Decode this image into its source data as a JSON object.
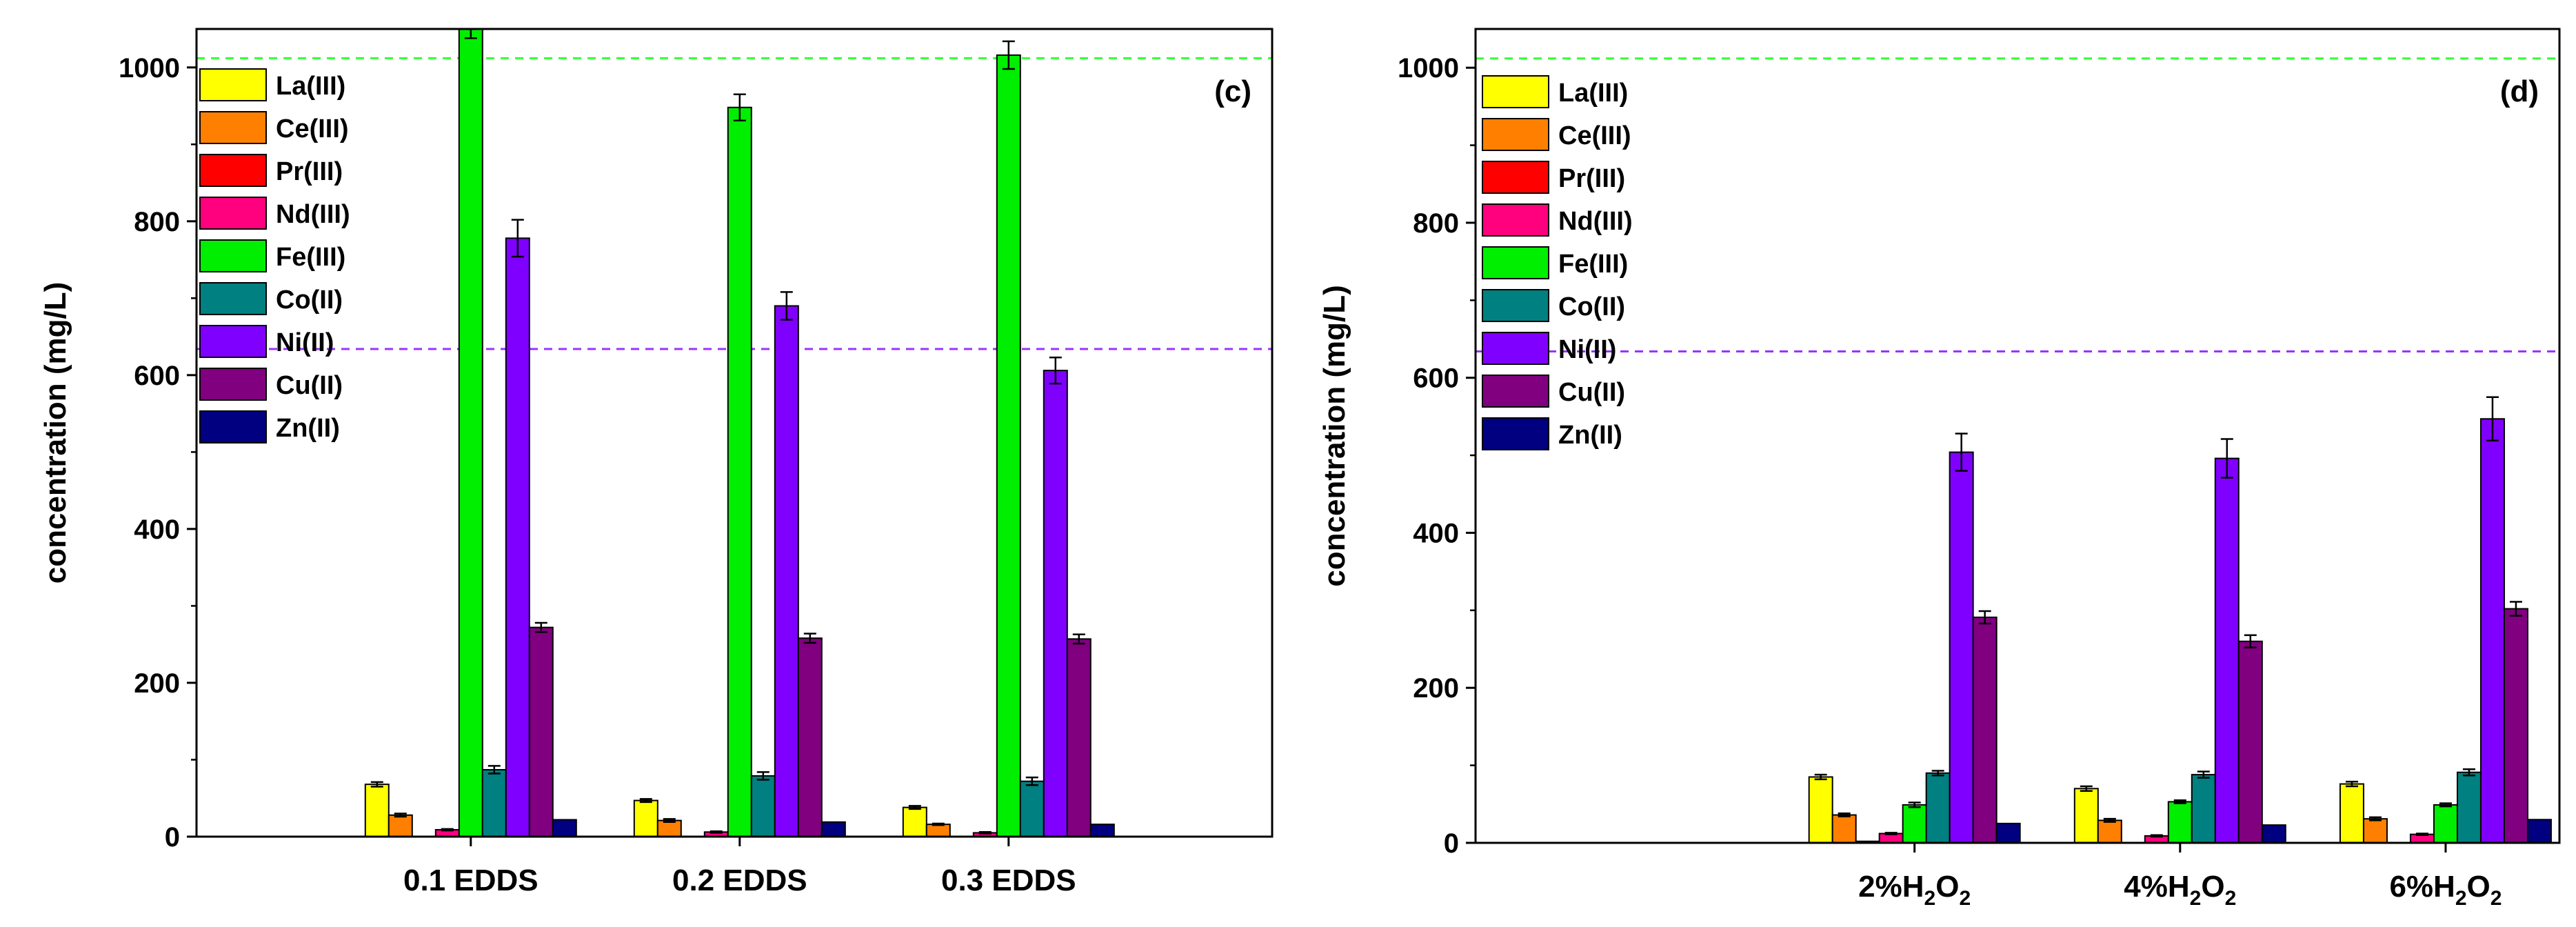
{
  "figure": {
    "background": "#ffffff"
  },
  "chart_data": [
    {
      "type": "bar",
      "panel_label": "(c)",
      "ylabel": "concentration (mg/L)",
      "ylim": [
        0,
        1050
      ],
      "yticks": [
        0,
        200,
        400,
        600,
        800,
        1000
      ],
      "categories": [
        "0.1 EDDS",
        "0.2 EDDS",
        "0.3 EDDS"
      ],
      "category_labels": [
        {
          "pre": "0.1 EDDS",
          "sub": "",
          "post": ""
        },
        {
          "pre": "0.2 EDDS",
          "sub": "",
          "post": ""
        },
        {
          "pre": "0.3 EDDS",
          "sub": "",
          "post": ""
        }
      ],
      "legend_position": "top-left",
      "reference_lines": [
        {
          "value": 1012,
          "color": "#33ff33"
        },
        {
          "value": 634,
          "color": "#9933ff"
        }
      ],
      "series": [
        {
          "name": "La(III)",
          "color": "#ffff00",
          "values": [
            68,
            47,
            38
          ],
          "errors": [
            3,
            2,
            2
          ]
        },
        {
          "name": "Ce(III)",
          "color": "#ff8000",
          "values": [
            28,
            21,
            16
          ],
          "errors": [
            2,
            2,
            1
          ]
        },
        {
          "name": "Pr(III)",
          "color": "#ff0000",
          "values": [
            0,
            0,
            0
          ],
          "errors": [
            0,
            0,
            0
          ]
        },
        {
          "name": "Nd(III)",
          "color": "#ff007f",
          "values": [
            9,
            6,
            5
          ],
          "errors": [
            1,
            1,
            1
          ]
        },
        {
          "name": "Fe(III)",
          "color": "#00ee00",
          "values": [
            1050,
            948,
            1016
          ],
          "errors": [
            12,
            17,
            18
          ]
        },
        {
          "name": "Co(II)",
          "color": "#008080",
          "values": [
            87,
            79,
            72
          ],
          "errors": [
            5,
            5,
            5
          ]
        },
        {
          "name": "Ni(II)",
          "color": "#8000ff",
          "values": [
            778,
            690,
            606
          ],
          "errors": [
            24,
            18,
            17
          ]
        },
        {
          "name": "Cu(II)",
          "color": "#800080",
          "values": [
            272,
            258,
            257
          ],
          "errors": [
            6,
            6,
            6
          ]
        },
        {
          "name": "Zn(II)",
          "color": "#000080",
          "values": [
            22,
            19,
            16
          ],
          "errors": [
            0,
            0,
            0
          ]
        }
      ]
    },
    {
      "type": "bar",
      "panel_label": "(d)",
      "ylabel": "concentration (mg/L)",
      "ylim": [
        0,
        1050
      ],
      "yticks": [
        0,
        200,
        400,
        600,
        800,
        1000
      ],
      "categories": [
        "2%H2O2",
        "4%H2O2",
        "6%H2O2"
      ],
      "category_labels": [
        {
          "pre": "2%H",
          "sub": "2",
          "post": "O",
          "sub2": "2"
        },
        {
          "pre": "4%H",
          "sub": "2",
          "post": "O",
          "sub2": "2"
        },
        {
          "pre": "6%H",
          "sub": "2",
          "post": "O",
          "sub2": "2"
        }
      ],
      "legend_position": "top-left",
      "reference_lines": [
        {
          "value": 1012,
          "color": "#33ff33"
        },
        {
          "value": 634,
          "color": "#9933ff"
        }
      ],
      "series": [
        {
          "name": "La(III)",
          "color": "#ffff00",
          "values": [
            85,
            70,
            76
          ],
          "errors": [
            3,
            3,
            3
          ]
        },
        {
          "name": "Ce(III)",
          "color": "#ff8000",
          "values": [
            36,
            29,
            31
          ],
          "errors": [
            2,
            2,
            2
          ]
        },
        {
          "name": "Pr(III)",
          "color": "#ff0000",
          "values": [
            2,
            0,
            0
          ],
          "errors": [
            0,
            0,
            0
          ]
        },
        {
          "name": "Nd(III)",
          "color": "#ff007f",
          "values": [
            12,
            9,
            11
          ],
          "errors": [
            1,
            1,
            1
          ]
        },
        {
          "name": "Fe(III)",
          "color": "#00ee00",
          "values": [
            49,
            53,
            49
          ],
          "errors": [
            3,
            2,
            2
          ]
        },
        {
          "name": "Co(II)",
          "color": "#008080",
          "values": [
            90,
            88,
            91
          ],
          "errors": [
            3,
            4,
            4
          ]
        },
        {
          "name": "Ni(II)",
          "color": "#8000ff",
          "values": [
            504,
            496,
            547
          ],
          "errors": [
            24,
            25,
            28
          ]
        },
        {
          "name": "Cu(II)",
          "color": "#800080",
          "values": [
            291,
            260,
            302
          ],
          "errors": [
            8,
            8,
            9
          ]
        },
        {
          "name": "Zn(II)",
          "color": "#000080",
          "values": [
            25,
            23,
            30
          ],
          "errors": [
            0,
            0,
            0
          ]
        }
      ]
    }
  ]
}
